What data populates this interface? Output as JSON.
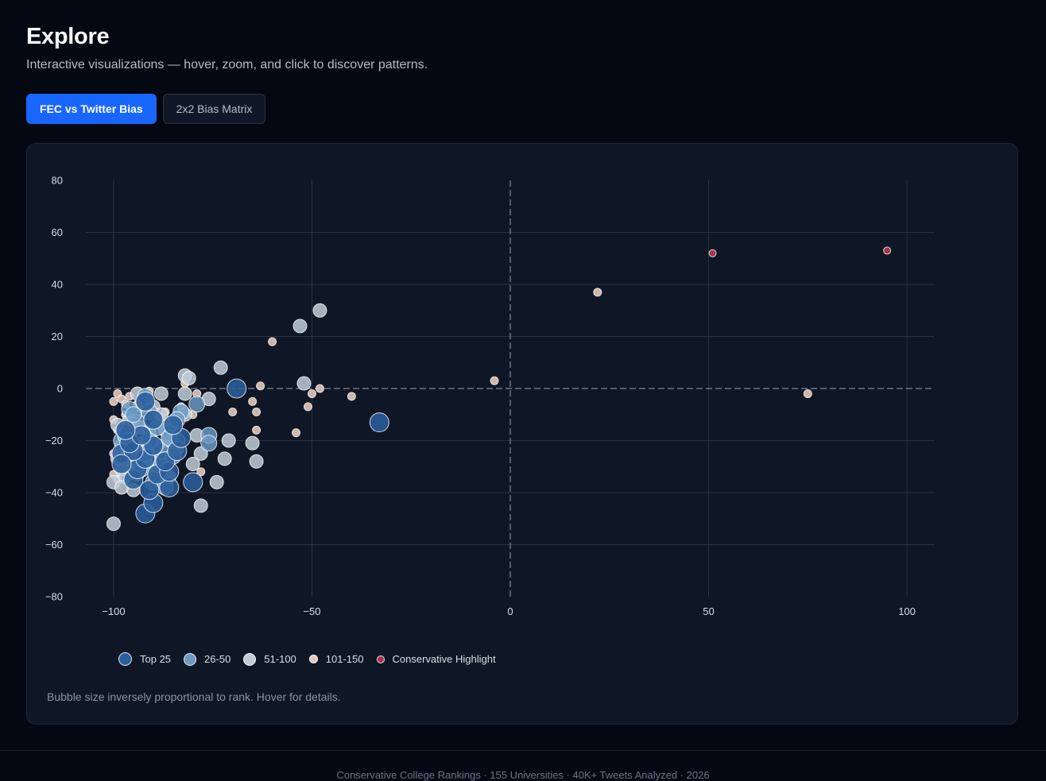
{
  "header": {
    "title": "Explore",
    "subtitle": "Interactive visualizations — hover, zoom, and click to discover patterns."
  },
  "tabs": [
    {
      "label": "FEC vs Twitter Bias",
      "active": true
    },
    {
      "label": "2x2 Bias Matrix",
      "active": false
    }
  ],
  "note": "Bubble size inversely proportional to rank. Hover for details.",
  "footer": {
    "text": "Conservative College Rankings · 155 Universities · 40K+ Tweets Analyzed · 2026"
  },
  "chart_data": {
    "type": "scatter",
    "title": "",
    "xlabel": "",
    "ylabel": "",
    "xlim": [
      -107,
      107
    ],
    "ylim": [
      -80,
      80
    ],
    "x_ticks": [
      -100,
      -50,
      0,
      50,
      100
    ],
    "y_ticks": [
      -80,
      -60,
      -40,
      -20,
      0,
      20,
      40,
      60,
      80
    ],
    "x_tick_labels": [
      "−100",
      "−50",
      "0",
      "50",
      "100"
    ],
    "y_tick_labels": [
      "−80",
      "−60",
      "−40",
      "−20",
      "0",
      "20",
      "40",
      "60",
      "80"
    ],
    "grid": true,
    "zero_lines": "dashed",
    "legend_position": "bottom-left",
    "series": [
      {
        "name": "Top 25",
        "color": "#2a5e9c",
        "points": [
          [
            -92,
            -48
          ],
          [
            -90,
            -44
          ],
          [
            -80,
            -36
          ],
          [
            -86,
            -38
          ],
          [
            -91,
            -39
          ],
          [
            -95,
            -35
          ],
          [
            -89,
            -33
          ],
          [
            -86,
            -32
          ],
          [
            -94,
            -31
          ],
          [
            -87,
            -28
          ],
          [
            -92,
            -27
          ],
          [
            -98,
            -25
          ],
          [
            -95,
            -24
          ],
          [
            -90,
            -22
          ],
          [
            -96,
            -21
          ],
          [
            -93,
            -18
          ],
          [
            -84,
            -24
          ],
          [
            -83,
            -19
          ],
          [
            -97,
            -16
          ],
          [
            -90,
            -12
          ],
          [
            -85,
            -14
          ],
          [
            -69,
            0
          ],
          [
            -33,
            -13
          ],
          [
            -92,
            -5
          ],
          [
            -98,
            -29
          ]
        ]
      },
      {
        "name": "26-50",
        "color": "#6d9bc4",
        "points": [
          [
            -84,
            -20
          ],
          [
            -86,
            -17
          ],
          [
            -94,
            -13
          ],
          [
            -96,
            -8
          ],
          [
            -92,
            -3
          ],
          [
            -79,
            -6
          ],
          [
            -76,
            -18
          ],
          [
            -76,
            -21
          ],
          [
            -83,
            -9
          ],
          [
            -88,
            -29
          ],
          [
            -98,
            -20
          ],
          [
            -94,
            -27
          ],
          [
            -91,
            -20
          ],
          [
            -88,
            -24
          ],
          [
            -90,
            -36
          ],
          [
            -95,
            -10
          ],
          [
            -93,
            -31
          ],
          [
            -86,
            -19
          ],
          [
            -84,
            -12
          ],
          [
            -87,
            -38
          ],
          [
            -97,
            -18
          ],
          [
            -92,
            -25
          ],
          [
            -89,
            -15
          ],
          [
            -85,
            -26
          ],
          [
            -91,
            -9
          ]
        ]
      },
      {
        "name": "51-100",
        "color": "#c0ccd8",
        "points": [
          [
            -48,
            30
          ],
          [
            -53,
            24
          ],
          [
            -73,
            8
          ],
          [
            -82,
            5
          ],
          [
            -81,
            4
          ],
          [
            -52,
            2
          ],
          [
            -94,
            -2
          ],
          [
            -88,
            -2
          ],
          [
            -82,
            -2
          ],
          [
            -76,
            -4
          ],
          [
            -79,
            -18
          ],
          [
            -78,
            -25
          ],
          [
            -71,
            -20
          ],
          [
            -72,
            -27
          ],
          [
            -65,
            -21
          ],
          [
            -64,
            -28
          ],
          [
            -74,
            -36
          ],
          [
            -78,
            -45
          ],
          [
            -86,
            -20
          ],
          [
            -88,
            -27
          ],
          [
            -92,
            -29
          ],
          [
            -98,
            -31
          ],
          [
            -100,
            -36
          ],
          [
            -97,
            -34
          ],
          [
            -100,
            -52
          ],
          [
            -98,
            -22
          ],
          [
            -96,
            -26
          ],
          [
            -94,
            -33
          ],
          [
            -91,
            -30
          ],
          [
            -89,
            -22
          ],
          [
            -87,
            -16
          ],
          [
            -85,
            -13
          ],
          [
            -99,
            -14
          ],
          [
            -95,
            -39
          ],
          [
            -93,
            -24
          ],
          [
            -84,
            -23
          ],
          [
            -96,
            -12
          ],
          [
            -90,
            -7
          ],
          [
            -86,
            -34
          ],
          [
            -82,
            -10
          ],
          [
            -80,
            -29
          ],
          [
            -97,
            -19
          ],
          [
            -99,
            -27
          ],
          [
            -93,
            -15
          ],
          [
            -88,
            -10
          ],
          [
            -91,
            -17
          ],
          [
            -95,
            -28
          ],
          [
            -89,
            -30
          ],
          [
            -98,
            -38
          ],
          [
            -92,
            -22
          ]
        ]
      },
      {
        "name": "101-150",
        "color": "#e3c6b6",
        "points": [
          [
            22,
            37
          ],
          [
            -4,
            3
          ],
          [
            75,
            -2
          ],
          [
            -60,
            18
          ],
          [
            -63,
            1
          ],
          [
            -48,
            0
          ],
          [
            -50,
            -2
          ],
          [
            -40,
            -3
          ],
          [
            -51,
            -7
          ],
          [
            -65,
            -5
          ],
          [
            -64,
            -9
          ],
          [
            -70,
            -9
          ],
          [
            -64,
            -16
          ],
          [
            -54,
            -17
          ],
          [
            -82,
            2
          ],
          [
            -83,
            -7
          ],
          [
            -79,
            -2
          ],
          [
            -80,
            -10
          ],
          [
            -87,
            -9
          ],
          [
            -88,
            -11
          ],
          [
            -91,
            -4
          ],
          [
            -93,
            -8
          ],
          [
            -99,
            -2
          ],
          [
            -98,
            -4
          ],
          [
            -100,
            -12
          ],
          [
            -97,
            -10
          ],
          [
            -95,
            -14
          ],
          [
            -90,
            -19
          ],
          [
            -92,
            -23
          ],
          [
            -99,
            -16
          ],
          [
            -97,
            -23
          ],
          [
            -100,
            -25
          ],
          [
            -98,
            -28
          ],
          [
            -96,
            -30
          ],
          [
            -100,
            -33
          ],
          [
            -99,
            -35
          ],
          [
            -95,
            -18
          ],
          [
            -93,
            -20
          ],
          [
            -89,
            -14
          ],
          [
            -87,
            -21
          ],
          [
            -85,
            -16
          ],
          [
            -91,
            -26
          ],
          [
            -94,
            -6
          ],
          [
            -96,
            -3
          ],
          [
            -78,
            -32
          ],
          [
            -100,
            -5
          ],
          [
            -84,
            -10
          ],
          [
            -97,
            -6
          ],
          [
            -98,
            -19
          ],
          [
            -91,
            -1
          ]
        ]
      },
      {
        "name": "Conservative Highlight",
        "color": "#a8344a",
        "points": [
          [
            51,
            52
          ],
          [
            95,
            53
          ]
        ]
      }
    ]
  }
}
